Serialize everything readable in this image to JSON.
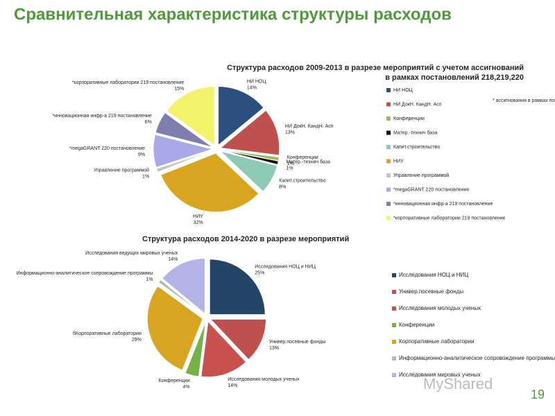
{
  "title": "Сравнительная характеристика структуры расходов",
  "slide_number": "19",
  "watermark": "MyShared",
  "chart_data": [
    {
      "type": "pie",
      "title": [
        "Структура расходов 2009-2013  в разрезе мероприятий с учетом  ассигнований",
        "в рамках постановлений 218,219,220"
      ],
      "annotation": "* ассигнования в рамках постановлений",
      "categories": [
        "НИ НОЦ",
        "НИ ДокН. КандН. Асп",
        "Конференции",
        "Матер.-технич база",
        "Капит.строительство",
        "НИУ",
        "Управление программой",
        "*megaGRANT 220 постановление",
        "*инновационная инфр-а 219 постановление",
        "*корпоративные лаборатории 219 постановление"
      ],
      "labels": [
        "НИ НОЦ",
        "НИ ДокН. КандН. Асп",
        "Конференции",
        "Матер.-технич база",
        "Капит.строительство",
        "НИУ",
        "Управление программой",
        "*megaGRANT 220 постановление",
        "*инновационная инфр-а 219 постановление",
        "*корпоративные лаборатории 219 постановление"
      ],
      "values": [
        14,
        13,
        1,
        1,
        8,
        32,
        1,
        9,
        6,
        15
      ],
      "value_labels": [
        "14%",
        "13%",
        "1%",
        "1%",
        "8%",
        "32%",
        "1%",
        "9%",
        "6%",
        "15%"
      ],
      "colors": [
        "#2b4f7e",
        "#c0504d",
        "#9bbb59",
        "#111111",
        "#8ccab5",
        "#d9a520",
        "#c4c4c4",
        "#a9a9e8",
        "#7f7fae",
        "#f2f26b"
      ]
    },
    {
      "type": "pie",
      "title": [
        "Структура расходов 2014-2020 в разрезе мероприятий"
      ],
      "categories": [
        "Исследования НОЦ и НИЦ",
        "Универ.посевные фонды",
        "Исследования молодых ученых",
        "Конференции",
        "Корпоративные лаборатории",
        "Информационно-аналитическое сопровождение программы",
        "Исследования мировых ученых"
      ],
      "labels": [
        "Исследования НОЦ и НИЦ",
        "Универ.посевные фонды",
        "Исследования молодых ученых",
        "Конференции",
        "бКорпоративные лаборатории",
        "Информационно-аналитическое сопровождение программы",
        "Исследования ведущих мировых ученых"
      ],
      "values": [
        25,
        13,
        14,
        4,
        29,
        1,
        14
      ],
      "value_labels": [
        "25%",
        "13%",
        "14%",
        "4%",
        "29%",
        "1%",
        "14%"
      ],
      "colors": [
        "#234567",
        "#c0504d",
        "#c8504d",
        "#77b044",
        "#d9a520",
        "#b8b8b8",
        "#b3b3e8"
      ]
    }
  ]
}
